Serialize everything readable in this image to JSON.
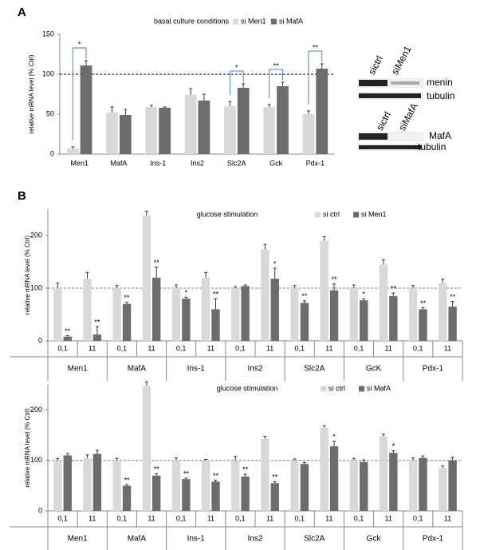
{
  "panel_labels": [
    "A",
    "B"
  ],
  "blots": [
    {
      "lanes": [
        "sictrl",
        "siMen1"
      ],
      "bands": [
        "menin",
        "tubulin"
      ]
    },
    {
      "lanes": [
        "sictrl",
        "siMafA"
      ],
      "bands": [
        "MafA",
        "tubulin"
      ]
    }
  ],
  "chart_data": [
    {
      "type": "bar",
      "title": "basal culture conditions",
      "y_label": "relative mRNA level (% Ctrl)",
      "categories": [
        "Men1",
        "MafA",
        "Ins-1",
        "Ins2",
        "Slc2A",
        "Gck",
        "Pdx-1"
      ],
      "series": [
        {
          "name": "si Men1",
          "color": "#d9d9d9",
          "values": [
            7,
            52,
            59,
            74,
            60,
            59,
            50
          ],
          "errors": [
            2,
            7,
            2,
            8,
            6,
            3,
            4
          ],
          "significance": [
            null,
            null,
            null,
            null,
            null,
            null,
            null
          ]
        },
        {
          "name": "si MafA",
          "color": "#6d6d6d",
          "values": [
            111,
            49,
            58,
            67,
            83,
            85,
            107
          ],
          "errors": [
            6,
            7,
            1,
            8,
            5,
            5,
            6
          ],
          "significance": [
            "*",
            null,
            null,
            null,
            "*",
            "**",
            "**"
          ]
        }
      ],
      "ylim": [
        0,
        150
      ],
      "yticks": [
        0,
        50,
        100,
        150
      ],
      "reference_line": 100,
      "reference_color": "#000000"
    },
    {
      "type": "bar",
      "title": "glucose stimulation",
      "y_label": "relative mRNA level (% Ctrl)",
      "categories": [
        "0,1",
        "11",
        "0,1",
        "11",
        "0,1",
        "11",
        "0,1",
        "11",
        "0,1",
        "11",
        "0,1",
        "11",
        "0,1",
        "11"
      ],
      "groups": [
        "Men1",
        "MafA",
        "Ins-1",
        "Ins2",
        "Slc2A",
        "GcK",
        "Pdx-1"
      ],
      "series": [
        {
          "name": "si ctrl",
          "color": "#d9d9d9",
          "values": [
            100,
            118,
            100,
            238,
            100,
            120,
            100,
            173,
            100,
            190,
            100,
            145,
            100,
            110
          ],
          "errors": [
            10,
            12,
            5,
            8,
            6,
            10,
            3,
            10,
            5,
            8,
            6,
            9,
            5,
            7
          ],
          "significance": [
            null,
            null,
            null,
            null,
            null,
            null,
            null,
            null,
            null,
            null,
            null,
            null,
            null,
            null
          ]
        },
        {
          "name": "si Men1",
          "color": "#6d6d6d",
          "values": [
            8,
            12,
            70,
            120,
            80,
            60,
            104,
            118,
            72,
            96,
            77,
            85,
            60,
            65
          ],
          "errors": [
            2,
            15,
            3,
            20,
            3,
            20,
            2,
            20,
            4,
            12,
            3,
            6,
            3,
            10
          ],
          "significance": [
            "**",
            "**",
            "**",
            "**",
            "*",
            "**",
            null,
            "*",
            "**",
            "**",
            "*",
            "**",
            "**",
            "**"
          ]
        }
      ],
      "ylim": [
        0,
        250
      ],
      "yticks": [
        0,
        100,
        200
      ],
      "reference_line": 100,
      "reference_color": "#4a86c8"
    },
    {
      "type": "bar",
      "title": "glucose stimulation",
      "y_label": "relative mRNA level (% Ctrl)",
      "categories": [
        "0,1",
        "11",
        "0,1",
        "11",
        "0,1",
        "11",
        "0,1",
        "11",
        "0,1",
        "11",
        "0,1",
        "11",
        "0,1",
        "11"
      ],
      "groups": [
        "Men1",
        "MafA",
        "Ins-1",
        "Ins2",
        "Slc2A",
        "Gck",
        "Pdx-1"
      ],
      "series": [
        {
          "name": "si ctrl",
          "color": "#d9d9d9",
          "values": [
            100,
            105,
            100,
            248,
            100,
            100,
            100,
            143,
            100,
            165,
            100,
            148,
            100,
            85
          ],
          "errors": [
            4,
            6,
            4,
            8,
            5,
            2,
            8,
            5,
            3,
            4,
            4,
            4,
            5,
            4
          ],
          "significance": [
            null,
            null,
            null,
            null,
            null,
            null,
            null,
            null,
            null,
            null,
            null,
            null,
            null,
            null
          ]
        },
        {
          "name": "si MafA",
          "color": "#6d6d6d",
          "values": [
            110,
            113,
            50,
            70,
            63,
            58,
            68,
            55,
            93,
            128,
            97,
            115,
            105,
            100
          ],
          "errors": [
            4,
            7,
            2,
            4,
            2,
            3,
            5,
            3,
            3,
            10,
            4,
            4,
            4,
            6
          ],
          "significance": [
            null,
            null,
            "**",
            "**",
            "**",
            "**",
            "**",
            "**",
            null,
            "*",
            null,
            "*",
            null,
            null
          ]
        }
      ],
      "ylim": [
        0,
        250
      ],
      "yticks": [
        0,
        100,
        200
      ],
      "reference_line": 100,
      "reference_color": "#4a86c8"
    }
  ]
}
